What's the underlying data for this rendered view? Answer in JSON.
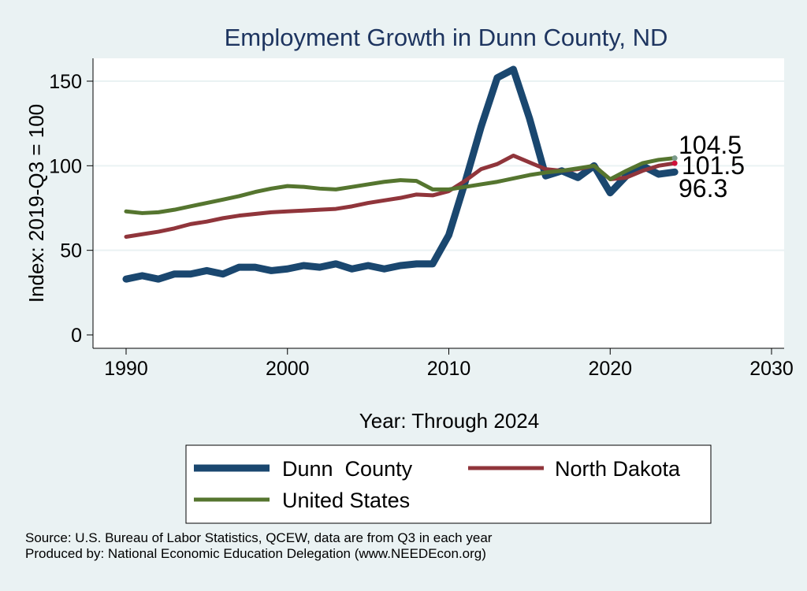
{
  "chart_data": {
    "type": "line",
    "title": "Employment Growth in Dunn County, ND",
    "xlabel": "Year: Through 2024",
    "ylabel": "Index: 2019-Q3 = 100",
    "xlim": [
      1990,
      2030
    ],
    "ylim": [
      0,
      160
    ],
    "xticks": [
      1990,
      2000,
      2010,
      2020,
      2030
    ],
    "yticks": [
      0,
      50,
      100,
      150
    ],
    "grid": true,
    "legend_placement": "bottom",
    "x": [
      1990,
      1991,
      1992,
      1993,
      1994,
      1995,
      1996,
      1997,
      1998,
      1999,
      2000,
      2001,
      2002,
      2003,
      2004,
      2005,
      2006,
      2007,
      2008,
      2009,
      2010,
      2011,
      2012,
      2013,
      2014,
      2015,
      2016,
      2017,
      2018,
      2019,
      2020,
      2021,
      2022,
      2023,
      2024
    ],
    "series": [
      {
        "name": "Dunn  County",
        "color": "#1a476f",
        "end_label": "96.3",
        "values": [
          33,
          35,
          33,
          36,
          36,
          38,
          36,
          40,
          40,
          38,
          39,
          41,
          40,
          42,
          39,
          41,
          39,
          41,
          42,
          42,
          59,
          90,
          123,
          152,
          157,
          128,
          94,
          97,
          93,
          100,
          84,
          94,
          100,
          95,
          96.3
        ]
      },
      {
        "name": "North Dakota",
        "color": "#90353b",
        "end_label": "101.5",
        "values": [
          58,
          59.5,
          61,
          63,
          65.5,
          67,
          69,
          70.5,
          71.5,
          72.5,
          73,
          73.5,
          74,
          74.5,
          76,
          78,
          79.5,
          81,
          83,
          82.5,
          85,
          91,
          98,
          101,
          106,
          102,
          98,
          97,
          98,
          100,
          92,
          93,
          97,
          100,
          101.5
        ]
      },
      {
        "name": "United States",
        "color": "#55752f",
        "end_label": "104.5",
        "values": [
          73,
          72,
          72.5,
          74,
          76,
          78,
          80,
          82,
          84.5,
          86.5,
          88,
          87.5,
          86.5,
          86,
          87.5,
          89,
          90.5,
          91.5,
          91,
          86,
          86,
          87.5,
          89,
          90.5,
          92.5,
          94.5,
          96,
          97,
          98.5,
          100,
          92,
          97,
          101.5,
          103.5,
          104.5
        ]
      }
    ],
    "notes": [
      "Source: U.S. Bureau of Labor Statistics, QCEW, data are from Q3 in each year",
      "Produced by: National Economic Education Delegation (www.NEEDEcon.org)"
    ]
  }
}
